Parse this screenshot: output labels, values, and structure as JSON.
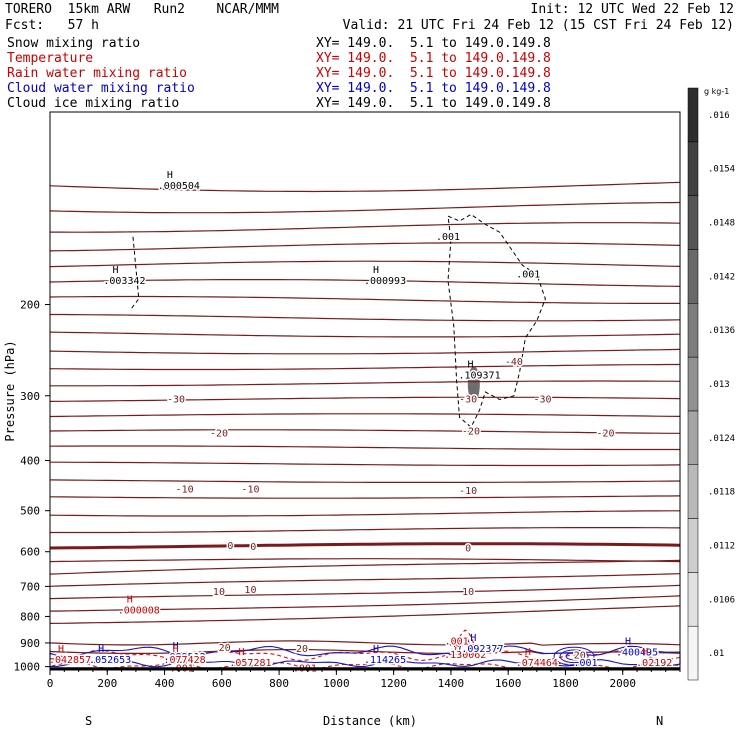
{
  "header": {
    "model": "TORERO  15km ARW   Run2    NCAR/MMM",
    "init": "Init: 12 UTC Wed 22 Feb 12",
    "fcst": "Fcst:   57 h",
    "valid": "Valid: 21 UTC Fri 24 Feb 12 (15 CST Fri 24 Feb 12)"
  },
  "legend": [
    {
      "name": "Snow mixing ratio",
      "xy": "XY= 149.0.  5.1 to 149.0.149.8",
      "color": "#000000"
    },
    {
      "name": "Temperature",
      "xy": "XY= 149.0.  5.1 to 149.0.149.8",
      "color": "#cc0000"
    },
    {
      "name": "Rain water mixing ratio",
      "xy": "XY= 149.0.  5.1 to 149.0.149.8",
      "color": "#cc0000"
    },
    {
      "name": "Cloud water mixing ratio",
      "xy": "XY= 149.0.  5.1 to 149.0.149.8",
      "color": "#0000cc"
    },
    {
      "name": "Cloud ice mixing ratio",
      "xy": "XY= 149.0.  5.1 to 149.0.149.8",
      "color": "#000000"
    }
  ],
  "chart_data": {
    "type": "contour",
    "xlabel": "Distance (km)",
    "ylabel": "Pressure (hPa)",
    "xlim": [
      0,
      2200
    ],
    "ylim": [
      1015,
      85
    ],
    "y_scale": "log",
    "x_ticks": [
      0,
      200,
      400,
      600,
      800,
      1000,
      1200,
      1400,
      1600,
      1800,
      2000
    ],
    "y_ticks": [
      200,
      300,
      400,
      500,
      600,
      700,
      800,
      900,
      1000
    ],
    "x_end_labels": {
      "left": "S",
      "right": "N"
    },
    "colorbar": {
      "units": "g kg-1",
      "labels": [
        ".01",
        ".0106",
        ".0112",
        ".0118",
        ".0124",
        ".013",
        ".0136",
        ".0142",
        ".0148",
        ".0154",
        ".016"
      ]
    },
    "temperature_contour_labels": [
      {
        "x": 440,
        "p": 305,
        "text": "-30"
      },
      {
        "x": 1460,
        "p": 305,
        "text": "-30"
      },
      {
        "x": 1720,
        "p": 305,
        "text": "-30"
      },
      {
        "x": 1620,
        "p": 258,
        "text": "-40"
      },
      {
        "x": 590,
        "p": 355,
        "text": "-20"
      },
      {
        "x": 1470,
        "p": 352,
        "text": "-20"
      },
      {
        "x": 1940,
        "p": 355,
        "text": "-20"
      },
      {
        "x": 470,
        "p": 455,
        "text": "-10"
      },
      {
        "x": 700,
        "p": 455,
        "text": "-10"
      },
      {
        "x": 1460,
        "p": 458,
        "text": "-10"
      },
      {
        "x": 630,
        "p": 585,
        "text": "0"
      },
      {
        "x": 710,
        "p": 587,
        "text": "0"
      },
      {
        "x": 1460,
        "p": 592,
        "text": "0"
      },
      {
        "x": 590,
        "p": 718,
        "text": "10"
      },
      {
        "x": 700,
        "p": 712,
        "text": "10"
      },
      {
        "x": 1460,
        "p": 718,
        "text": "10"
      },
      {
        "x": 610,
        "p": 920,
        "text": "20"
      },
      {
        "x": 880,
        "p": 925,
        "text": "20"
      },
      {
        "x": 1850,
        "p": 952,
        "text": "20"
      }
    ],
    "maxima_labels": [
      {
        "x": 450,
        "p": 118,
        "text": ".000504",
        "color": "#000000"
      },
      {
        "x": 260,
        "p": 180,
        "text": ".003342",
        "color": "#000000"
      },
      {
        "x": 1170,
        "p": 180,
        "text": ".000993",
        "color": "#000000"
      },
      {
        "x": 1500,
        "p": 274,
        "text": ".109371",
        "color": "#000000"
      },
      {
        "x": 310,
        "p": 780,
        "text": ".000008",
        "color": "#cc0000"
      },
      {
        "x": 70,
        "p": 970,
        "text": ".042857",
        "color": "#cc0000"
      },
      {
        "x": 210,
        "p": 970,
        "text": ".052653",
        "color": "#0000cc"
      },
      {
        "x": 470,
        "p": 957,
        "text": ".089512",
        "color": "#0000cc"
      },
      {
        "x": 470,
        "p": 970,
        "text": ".077428",
        "color": "#cc0000"
      },
      {
        "x": 700,
        "p": 985,
        "text": ".057281",
        "color": "#cc0000"
      },
      {
        "x": 1170,
        "p": 970,
        "text": ".114265",
        "color": "#0000cc"
      },
      {
        "x": 1450,
        "p": 950,
        "text": ".130062",
        "color": "#cc0000"
      },
      {
        "x": 1510,
        "p": 925,
        "text": ".092377",
        "color": "#0000cc"
      },
      {
        "x": 1700,
        "p": 985,
        "text": ".074464",
        "color": "#cc0000"
      },
      {
        "x": 2050,
        "p": 940,
        "text": ".400495",
        "color": "#0000cc"
      },
      {
        "x": 2110,
        "p": 985,
        "text": ".02192",
        "color": "#cc0000"
      }
    ],
    "small_value_labels": [
      {
        "x": 1390,
        "p": 148,
        "text": ".001",
        "color": "#000000"
      },
      {
        "x": 1670,
        "p": 175,
        "text": ".001",
        "color": "#000000"
      },
      {
        "x": 1420,
        "p": 895,
        "text": ".001",
        "color": "#cc0000"
      },
      {
        "x": 1870,
        "p": 985,
        "text": ".001",
        "color": "#0000cc"
      },
      {
        "x": 460,
        "p": 1008,
        "text": ".001",
        "color": "#cc0000"
      },
      {
        "x": 890,
        "p": 1008,
        "text": ".001",
        "color": "#cc0000"
      }
    ]
  },
  "colors": {
    "temperature": "#7a1a1a",
    "rain": "#dd1111",
    "cloud_water": "#1515cc",
    "ice": "#000000",
    "axis": "#000000"
  }
}
